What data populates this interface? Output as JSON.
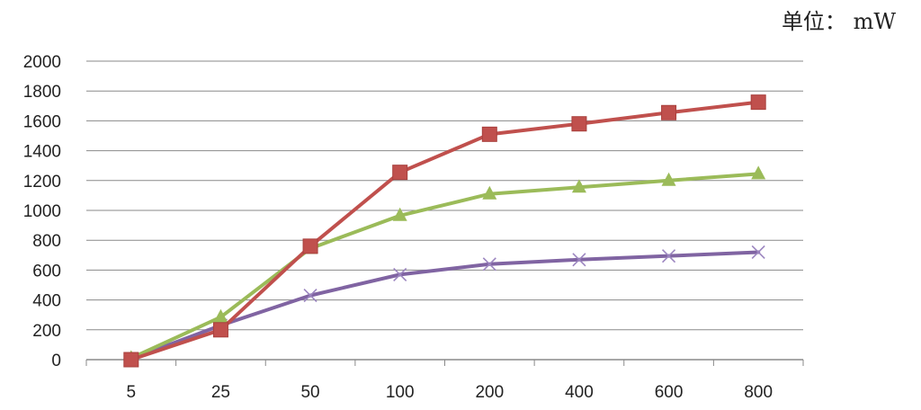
{
  "unit_label": "单位： mW",
  "chart_data": {
    "type": "line",
    "categories": [
      "5",
      "25",
      "50",
      "100",
      "200",
      "400",
      "600",
      "800"
    ],
    "ylim": [
      0,
      2000
    ],
    "yticks": [
      0,
      200,
      400,
      600,
      800,
      1000,
      1200,
      1400,
      1600,
      1800,
      2000
    ],
    "grid": true,
    "legend": "none",
    "series": [
      {
        "color": "#c0504d",
        "marker": "square",
        "values": [
          0,
          200,
          760,
          1255,
          1510,
          1580,
          1655,
          1725
        ]
      },
      {
        "color": "#9bbb59",
        "marker": "triangle",
        "values": [
          10,
          285,
          745,
          965,
          1110,
          1155,
          1200,
          1245
        ]
      },
      {
        "color": "#8064a2",
        "marker": "x",
        "values": [
          5,
          230,
          430,
          570,
          640,
          670,
          695,
          720
        ]
      }
    ]
  }
}
